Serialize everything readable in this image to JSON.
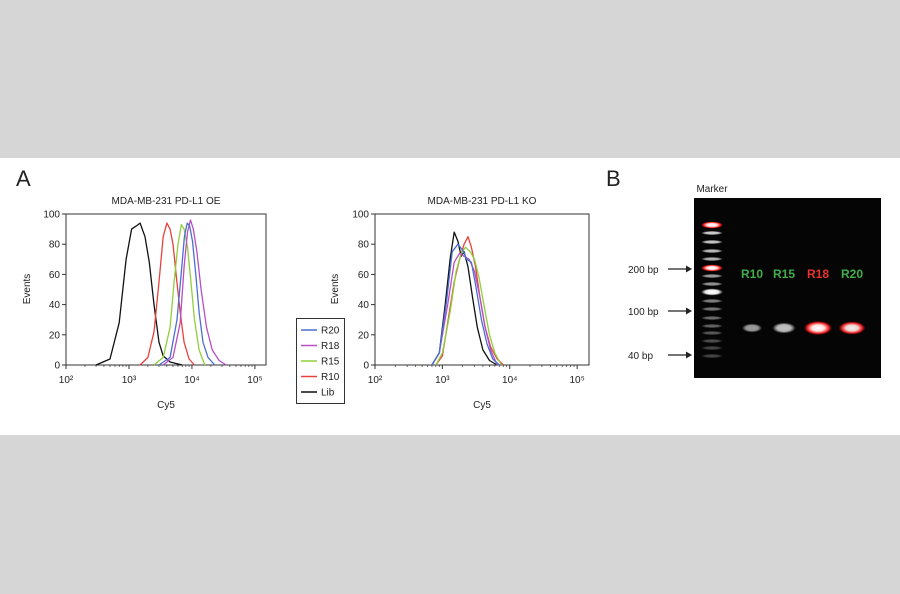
{
  "panels": {
    "a_label": "A",
    "b_label": "B"
  },
  "chart_data": [
    {
      "type": "line",
      "title": "MDA-MB-231 PD-L1 OE",
      "xlabel": "Cy5",
      "ylabel": "Events",
      "x_scale": "log",
      "xlim": [
        100,
        150000
      ],
      "ylim": [
        0,
        100
      ],
      "x_ticks": [
        100,
        1000,
        10000,
        100000
      ],
      "x_tick_labels": [
        "10²",
        "10³",
        "10⁴",
        "10⁵"
      ],
      "y_ticks": [
        0,
        20,
        40,
        60,
        80,
        100
      ],
      "series": [
        {
          "name": "Lib",
          "color": "#111111",
          "x": [
            300,
            500,
            700,
            900,
            1100,
            1300,
            1500,
            1800,
            2100,
            2500,
            3000,
            3500,
            4500,
            7000
          ],
          "y": [
            0,
            4,
            28,
            70,
            90,
            92,
            94,
            85,
            68,
            40,
            15,
            6,
            2,
            0
          ]
        },
        {
          "name": "R10",
          "color": "#e8413c",
          "x": [
            1500,
            2000,
            2500,
            3000,
            3500,
            4000,
            4500,
            5000,
            5600,
            6500,
            7500,
            9000,
            11000
          ],
          "y": [
            0,
            5,
            22,
            55,
            85,
            94,
            90,
            80,
            60,
            35,
            15,
            4,
            0
          ]
        },
        {
          "name": "R15",
          "color": "#8fcf3c",
          "x": [
            2500,
            3500,
            4500,
            5200,
            6000,
            6800,
            7500,
            8500,
            9500,
            11000,
            13000,
            16000
          ],
          "y": [
            0,
            5,
            25,
            55,
            80,
            93,
            90,
            78,
            58,
            30,
            10,
            0
          ]
        },
        {
          "name": "R18",
          "color": "#b84fc4",
          "x": [
            3500,
            5000,
            6500,
            7500,
            8500,
            9500,
            10500,
            12000,
            14000,
            17000,
            21000,
            27000,
            35000
          ],
          "y": [
            0,
            5,
            28,
            65,
            88,
            96,
            90,
            75,
            50,
            25,
            10,
            3,
            0
          ]
        },
        {
          "name": "R20",
          "color": "#4a6fd1",
          "x": [
            3000,
            4500,
            5800,
            6800,
            7600,
            8400,
            9200,
            10200,
            11500,
            13000,
            15000,
            18000,
            23000
          ],
          "y": [
            0,
            5,
            30,
            62,
            85,
            94,
            92,
            82,
            60,
            35,
            15,
            5,
            0
          ]
        }
      ],
      "legend_position": "right"
    },
    {
      "type": "line",
      "title": "MDA-MB-231 PD-L1 KO",
      "xlabel": "Cy5",
      "ylabel": "Events",
      "x_scale": "log",
      "xlim": [
        100,
        150000
      ],
      "ylim": [
        0,
        100
      ],
      "x_ticks": [
        100,
        1000,
        10000,
        100000
      ],
      "x_tick_labels": [
        "10²",
        "10³",
        "10⁴",
        "10⁵"
      ],
      "y_ticks": [
        0,
        20,
        40,
        60,
        80,
        100
      ],
      "series": [
        {
          "name": "Lib",
          "color": "#111111",
          "x": [
            700,
            900,
            1100,
            1300,
            1500,
            1700,
            1900,
            2100,
            2400,
            2800,
            3300,
            4000,
            5000,
            6500
          ],
          "y": [
            0,
            8,
            40,
            70,
            88,
            82,
            72,
            75,
            65,
            45,
            25,
            10,
            3,
            0
          ]
        },
        {
          "name": "R10",
          "color": "#e8413c",
          "x": [
            800,
            1000,
            1200,
            1500,
            1800,
            2100,
            2400,
            2700,
            3100,
            3600,
            4300,
            5200,
            6500,
            8000
          ],
          "y": [
            0,
            6,
            28,
            55,
            70,
            80,
            85,
            78,
            65,
            45,
            25,
            12,
            4,
            0
          ]
        },
        {
          "name": "R15",
          "color": "#8fcf3c",
          "x": [
            800,
            1000,
            1300,
            1600,
            1900,
            2200,
            2600,
            3000,
            3500,
            4200,
            5000,
            6000,
            7500
          ],
          "y": [
            0,
            8,
            35,
            62,
            74,
            78,
            75,
            70,
            58,
            38,
            20,
            8,
            0
          ]
        },
        {
          "name": "R18",
          "color": "#b84fc4",
          "x": [
            700,
            900,
            1200,
            1500,
            1800,
            2100,
            2500,
            3000,
            3600,
            4300,
            5200,
            6500
          ],
          "y": [
            0,
            8,
            40,
            68,
            74,
            72,
            70,
            62,
            45,
            25,
            10,
            0
          ]
        },
        {
          "name": "R20",
          "color": "#4a6fd1",
          "x": [
            700,
            900,
            1150,
            1400,
            1700,
            2000,
            2300,
            2700,
            3200,
            3800,
            4600,
            5600,
            7000
          ],
          "y": [
            0,
            8,
            42,
            75,
            80,
            76,
            70,
            68,
            50,
            30,
            14,
            4,
            0
          ]
        }
      ],
      "legend_position": "left"
    }
  ],
  "legend": {
    "items": [
      {
        "label": "R20",
        "color": "#4a6fd1"
      },
      {
        "label": "R18",
        "color": "#b84fc4"
      },
      {
        "label": "R15",
        "color": "#8fcf3c"
      },
      {
        "label": "R10",
        "color": "#e8413c"
      },
      {
        "label": "Lib",
        "color": "#111111"
      }
    ]
  },
  "gel": {
    "marker_label": "Marker",
    "size_labels": [
      "200 bp",
      "100 bp",
      "40 bp"
    ],
    "lanes": [
      {
        "label": "R10",
        "color": "#3fae48",
        "intensity": 0.35
      },
      {
        "label": "R15",
        "color": "#3fae48",
        "intensity": 0.6
      },
      {
        "label": "R18",
        "color": "#e8332a",
        "intensity": 1.0
      },
      {
        "label": "R20",
        "color": "#3fae48",
        "intensity": 0.9
      }
    ]
  }
}
